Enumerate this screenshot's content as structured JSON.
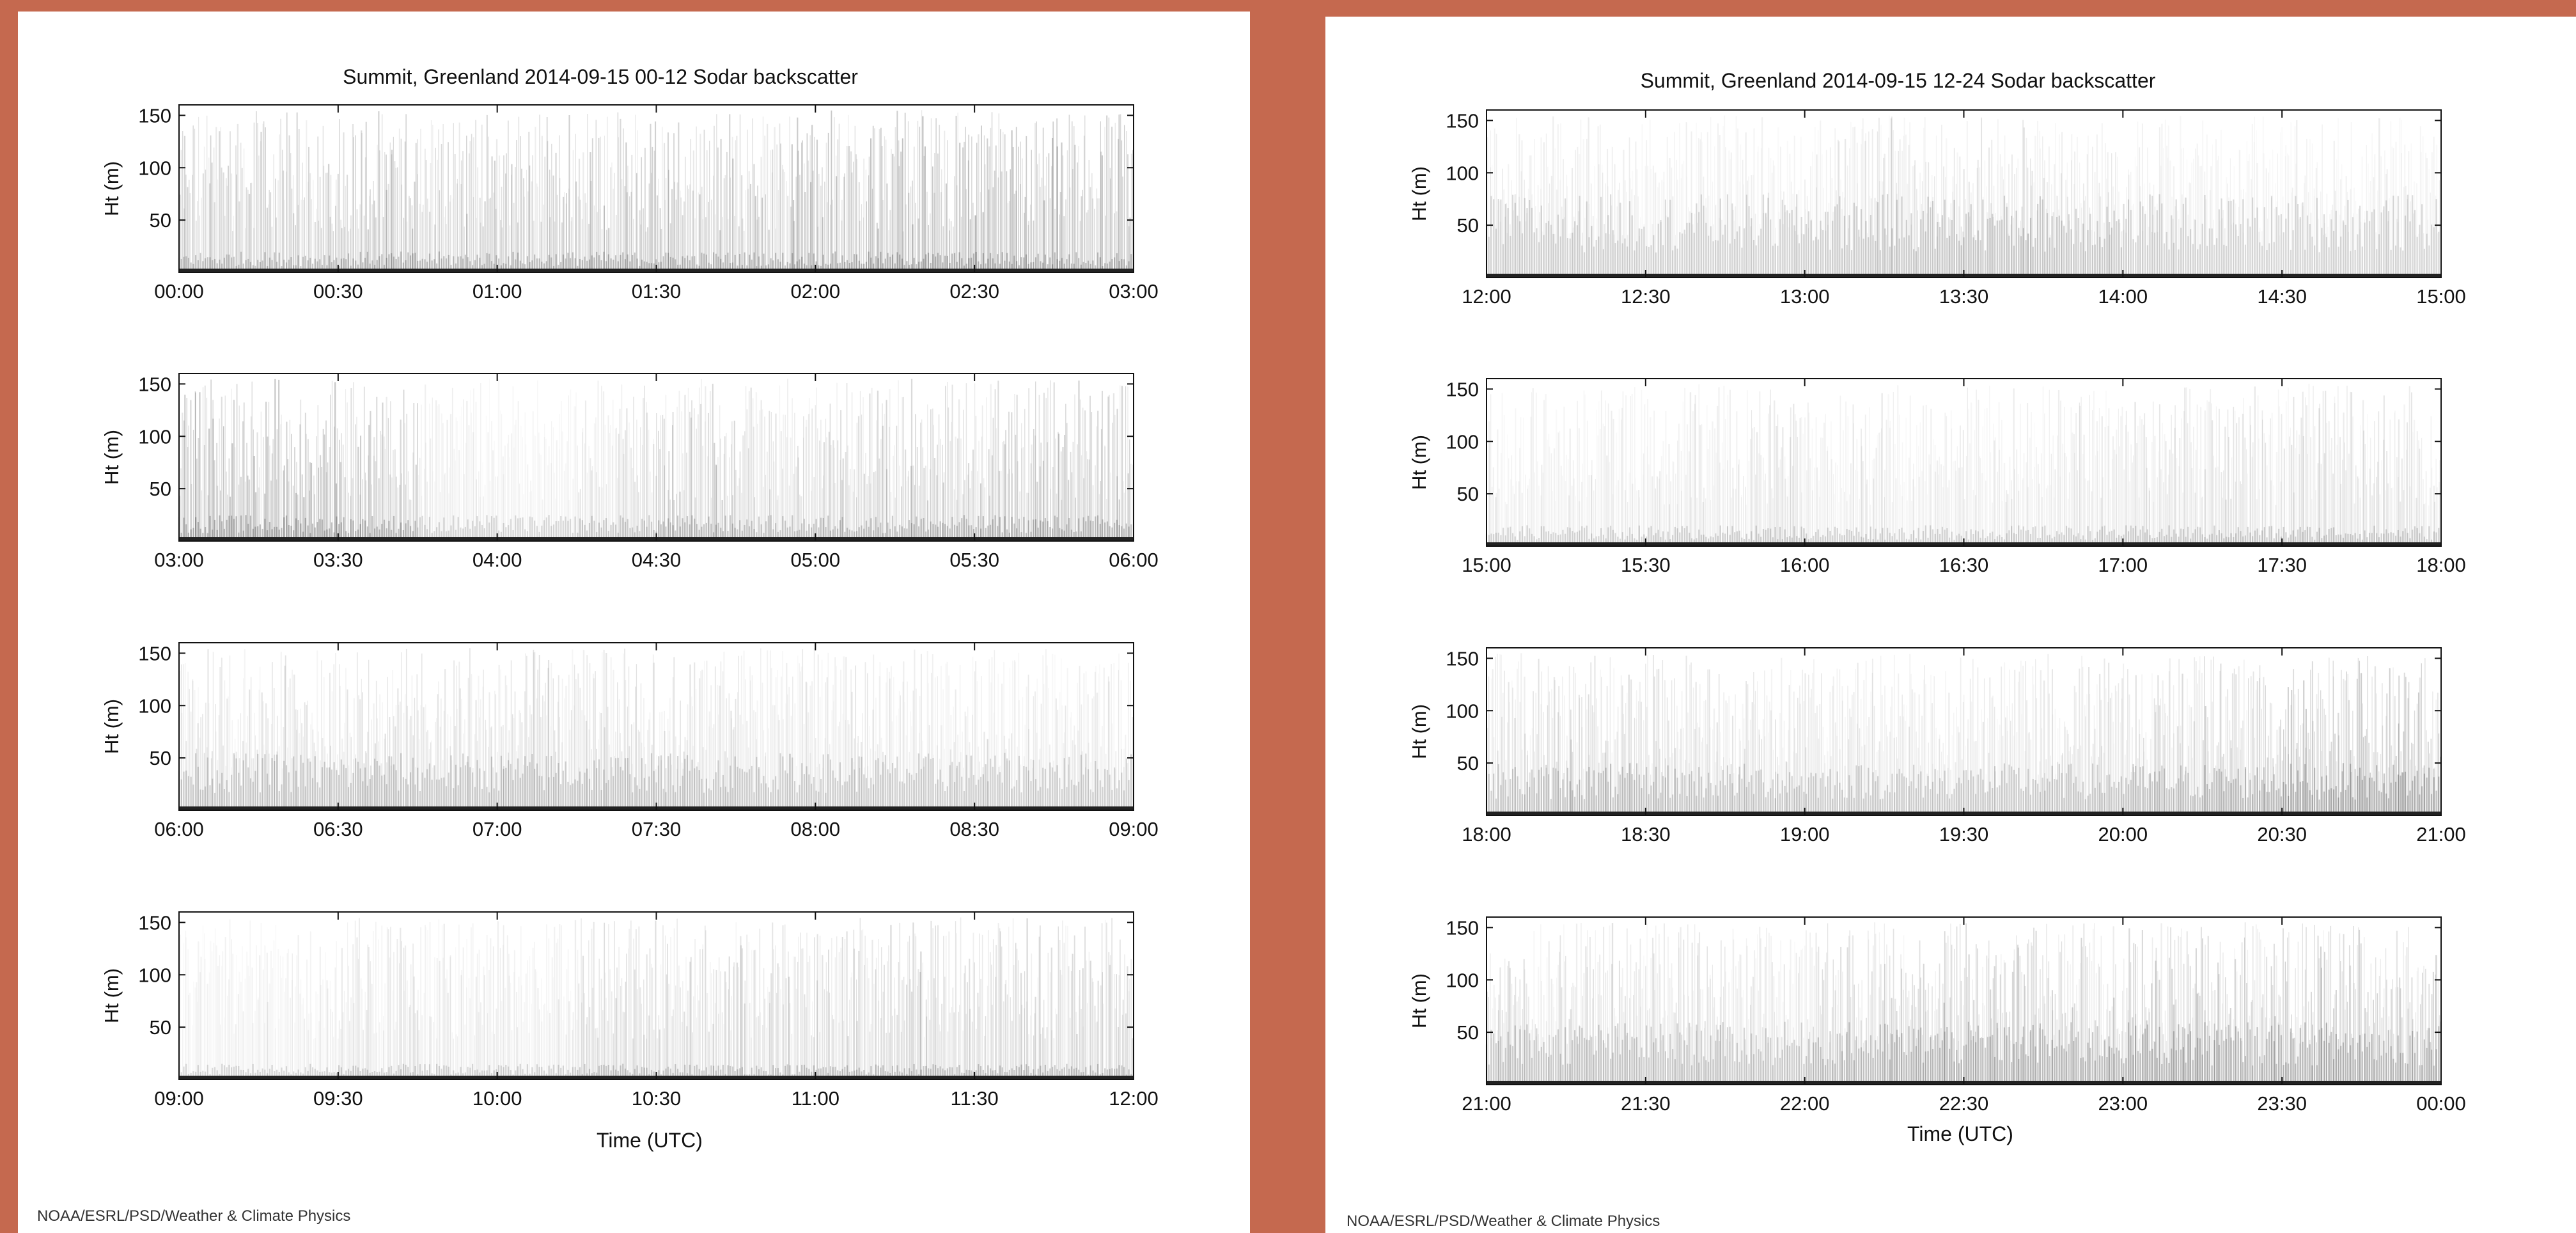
{
  "pages": [
    {
      "title": "Summit, Greenland 2014-09-15 00-12 Sodar backscatter",
      "credit": "NOAA/ESRL/PSD/Weather & Climate Physics",
      "xlabel": "Time (UTC)"
    },
    {
      "title": "Summit, Greenland 2014-09-15 12-24 Sodar backscatter",
      "credit": "NOAA/ESRL/PSD/Weather & Climate Physics",
      "xlabel": "Time (UTC)"
    }
  ],
  "colors": {
    "background": "#C5694F",
    "page": "#ffffff",
    "echo": "#3a3a3a"
  },
  "chart_data": [
    {
      "type": "heatmap",
      "title": "Summit, Greenland 2014-09-15 00-12 Sodar backscatter",
      "xlabel": "Time (UTC)",
      "ylabel": "Ht (m)",
      "ylim": [
        0,
        160
      ],
      "yticks": [
        50,
        100,
        150
      ],
      "colorscale": "white-to-black backscatter intensity",
      "panels": [
        {
          "x_range": [
            "00:00",
            "03:00"
          ],
          "xticks": [
            "00:00",
            "00:30",
            "01:00",
            "01:30",
            "02:00",
            "02:30",
            "03:00"
          ],
          "intensity_profile": [
            0.45,
            0.48,
            0.5,
            0.48,
            0.5,
            0.55,
            0.5,
            0.55,
            0.6,
            0.62,
            0.58,
            0.55
          ],
          "low_layer_top_m": 20
        },
        {
          "x_range": [
            "03:00",
            "06:00"
          ],
          "xticks": [
            "03:00",
            "03:30",
            "04:00",
            "04:30",
            "05:00",
            "05:30",
            "06:00"
          ],
          "intensity_profile": [
            0.6,
            0.6,
            0.55,
            0.18,
            0.15,
            0.3,
            0.45,
            0.35,
            0.4,
            0.45,
            0.5,
            0.5
          ],
          "low_layer_top_m": 25
        },
        {
          "x_range": [
            "06:00",
            "09:00"
          ],
          "xticks": [
            "06:00",
            "06:30",
            "07:00",
            "07:30",
            "08:00",
            "08:30",
            "09:00"
          ],
          "intensity_profile": [
            0.3,
            0.3,
            0.32,
            0.28,
            0.3,
            0.3,
            0.28,
            0.25,
            0.25,
            0.22,
            0.22,
            0.22
          ],
          "low_layer_top_m": 55
        },
        {
          "x_range": [
            "09:00",
            "12:00"
          ],
          "xticks": [
            "09:00",
            "09:30",
            "10:00",
            "10:30",
            "11:00",
            "11:30",
            "12:00"
          ],
          "intensity_profile": [
            0.15,
            0.18,
            0.25,
            0.2,
            0.2,
            0.35,
            0.35,
            0.38,
            0.38,
            0.4,
            0.4,
            0.38
          ],
          "low_layer_top_m": 15
        }
      ]
    },
    {
      "type": "heatmap",
      "title": "Summit, Greenland 2014-09-15 12-24 Sodar backscatter",
      "xlabel": "Time (UTC)",
      "ylabel": "Ht (m)",
      "ylim": [
        0,
        160
      ],
      "yticks": [
        50,
        100,
        150
      ],
      "colorscale": "white-to-black backscatter intensity",
      "panels": [
        {
          "x_range": [
            "12:00",
            "15:00"
          ],
          "xticks": [
            "12:00",
            "12:30",
            "13:00",
            "13:30",
            "14:00",
            "14:30",
            "15:00"
          ],
          "intensity_profile": [
            0.2,
            0.2,
            0.18,
            0.18,
            0.22,
            0.28,
            0.3,
            0.25,
            0.18,
            0.15,
            0.15,
            0.15
          ],
          "low_layer_top_m": 80
        },
        {
          "x_range": [
            "15:00",
            "18:00"
          ],
          "xticks": [
            "15:00",
            "15:30",
            "16:00",
            "16:30",
            "17:00",
            "17:30",
            "18:00"
          ],
          "intensity_profile": [
            0.18,
            0.2,
            0.22,
            0.25,
            0.22,
            0.2,
            0.2,
            0.22,
            0.25,
            0.28,
            0.3,
            0.25
          ],
          "low_layer_top_m": 20
        },
        {
          "x_range": [
            "18:00",
            "21:00"
          ],
          "xticks": [
            "18:00",
            "18:30",
            "19:00",
            "19:30",
            "20:00",
            "20:30",
            "21:00"
          ],
          "intensity_profile": [
            0.3,
            0.35,
            0.3,
            0.28,
            0.25,
            0.25,
            0.25,
            0.28,
            0.35,
            0.45,
            0.55,
            0.55
          ],
          "low_layer_top_m": 50
        },
        {
          "x_range": [
            "21:00",
            "00:00"
          ],
          "xticks": [
            "21:00",
            "21:30",
            "22:00",
            "22:30",
            "23:00",
            "23:30",
            "00:00"
          ],
          "intensity_profile": [
            0.3,
            0.32,
            0.3,
            0.25,
            0.35,
            0.45,
            0.45,
            0.45,
            0.48,
            0.45,
            0.48,
            0.45
          ],
          "low_layer_top_m": 60
        }
      ]
    }
  ]
}
